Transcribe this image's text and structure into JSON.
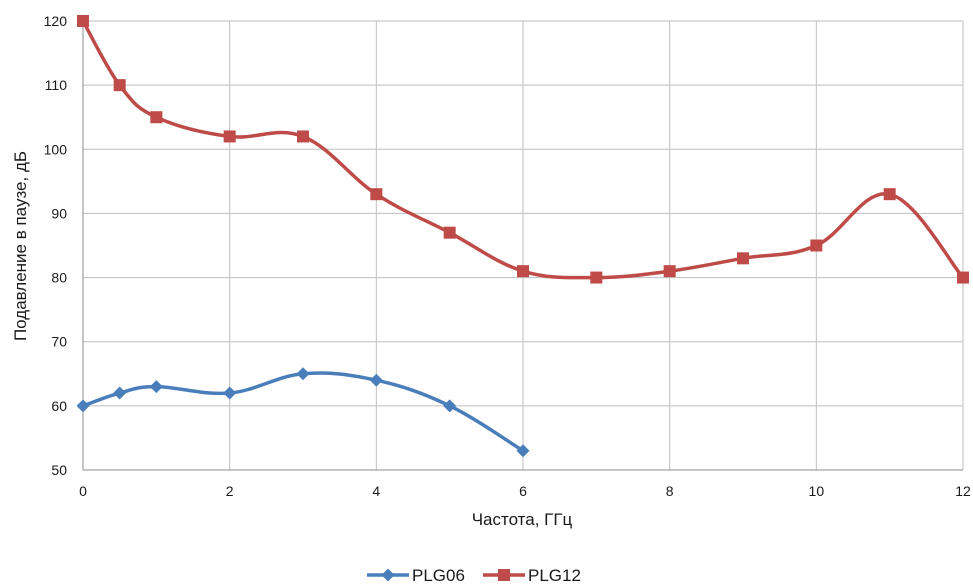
{
  "chart_data": {
    "type": "line",
    "xlabel": "Частота, ГГц",
    "ylabel": "Подавление в паузе, дБ",
    "xlim": [
      0,
      12
    ],
    "ylim": [
      50,
      120
    ],
    "x_ticks": [
      0,
      2,
      4,
      6,
      8,
      10,
      12
    ],
    "y_ticks": [
      50,
      60,
      70,
      80,
      90,
      100,
      110,
      120
    ],
    "grid": true,
    "legend_position": "bottom-center",
    "series": [
      {
        "name": "PLG06",
        "color": "#4a7ebb",
        "marker": "diamond",
        "points": [
          [
            0,
            60
          ],
          [
            0.5,
            62
          ],
          [
            1,
            63
          ],
          [
            2,
            62
          ],
          [
            3,
            65
          ],
          [
            4,
            64
          ],
          [
            5,
            60
          ],
          [
            6,
            53
          ]
        ]
      },
      {
        "name": "PLG12",
        "color": "#be4b48",
        "marker": "square",
        "points": [
          [
            0,
            120
          ],
          [
            0.5,
            110
          ],
          [
            1,
            105
          ],
          [
            2,
            102
          ],
          [
            3,
            102
          ],
          [
            4,
            93
          ],
          [
            5,
            87
          ],
          [
            6,
            81
          ],
          [
            7,
            80
          ],
          [
            8,
            81
          ],
          [
            9,
            83
          ],
          [
            10,
            85
          ],
          [
            11,
            93
          ],
          [
            12,
            80
          ]
        ]
      }
    ]
  }
}
